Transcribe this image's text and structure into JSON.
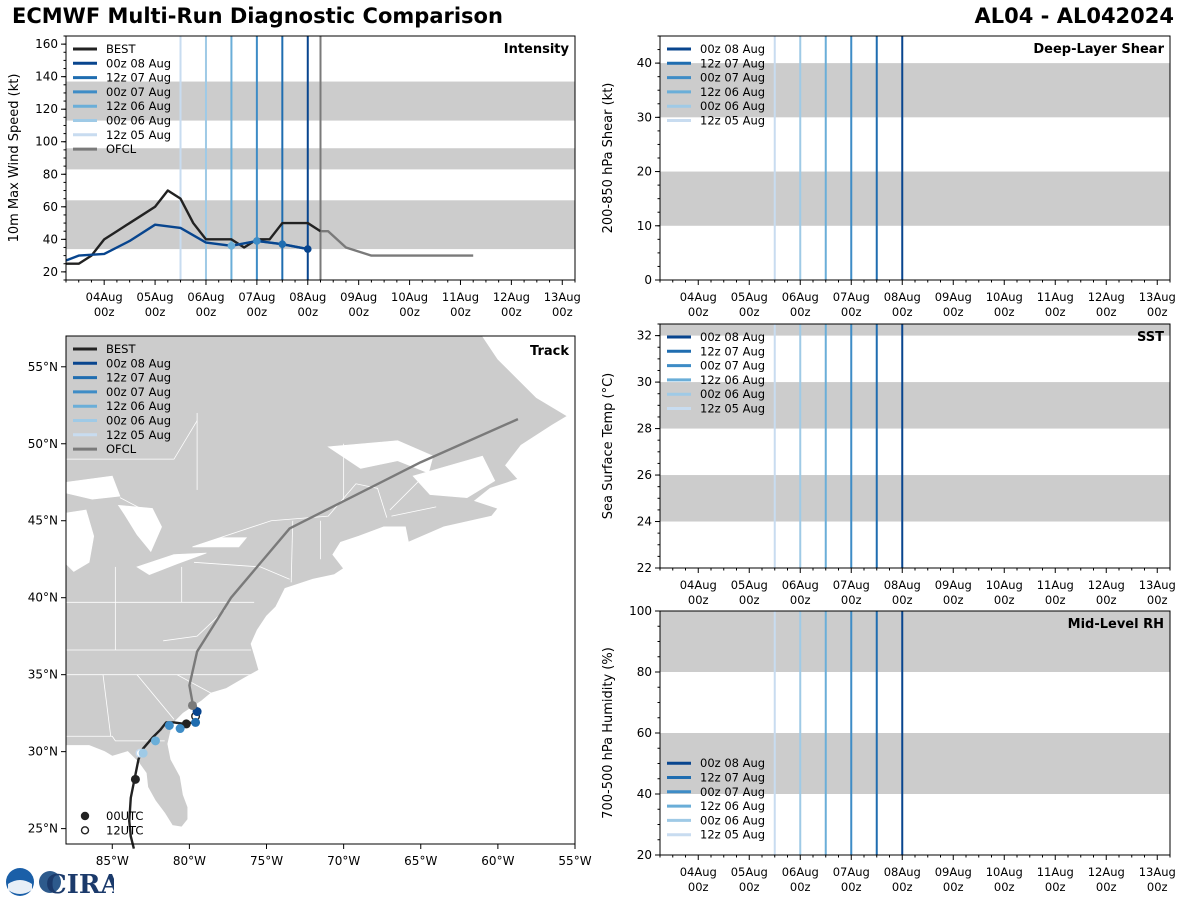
{
  "header": {
    "title_left": "ECMWF Multi-Run Diagnostic Comparison",
    "title_right": "AL04 - AL042024"
  },
  "colors": {
    "BEST": "#222222",
    "OFCL": "#7a7a7a",
    "00z 08 Aug": "#08458e",
    "12z 07 Aug": "#1f6db0",
    "00z 07 Aug": "#3e8cc6",
    "12z 06 Aug": "#6aaed8",
    "00z 06 Aug": "#9fcae6",
    "12z 05 Aug": "#c8dcf0",
    "shade": "#cccccc"
  },
  "logo_text": "CIRA",
  "time_axis": {
    "ticks": [
      {
        "day": 4,
        "label": "04Aug\n00z"
      },
      {
        "day": 5,
        "label": "05Aug\n00z"
      },
      {
        "day": 6,
        "label": "06Aug\n00z"
      },
      {
        "day": 7,
        "label": "07Aug\n00z"
      },
      {
        "day": 8,
        "label": "08Aug\n00z"
      },
      {
        "day": 9,
        "label": "09Aug\n00z"
      },
      {
        "day": 10,
        "label": "10Aug\n00z"
      },
      {
        "day": 11,
        "label": "11Aug\n00z"
      },
      {
        "day": 12,
        "label": "12Aug\n00z"
      },
      {
        "day": 13,
        "label": "13Aug\n00z"
      }
    ],
    "xlim": [
      3.25,
      13.25
    ]
  },
  "chart_data": [
    {
      "id": "intensity",
      "type": "line",
      "title": "Intensity",
      "ylabel": "10m Max Wind Speed (kt)",
      "ylim": [
        15,
        165
      ],
      "yticks": [
        20,
        40,
        60,
        80,
        100,
        120,
        140,
        160
      ],
      "bands": [
        [
          34,
          64
        ],
        [
          83,
          96
        ],
        [
          113,
          137
        ]
      ],
      "init_lines": [
        {
          "name": "12z 05 Aug",
          "x": 5.5
        },
        {
          "name": "00z 06 Aug",
          "x": 6.0
        },
        {
          "name": "12z 06 Aug",
          "x": 6.5
        },
        {
          "name": "00z 07 Aug",
          "x": 7.0
        },
        {
          "name": "12z 07 Aug",
          "x": 7.5
        },
        {
          "name": "00z 08 Aug",
          "x": 8.0
        },
        {
          "name": "OFCL",
          "x": 8.25
        }
      ],
      "legend": [
        "BEST",
        "00z 08 Aug",
        "12z 07 Aug",
        "00z 07 Aug",
        "12z 06 Aug",
        "00z 06 Aug",
        "12z 05 Aug",
        "OFCL"
      ],
      "legend_position": "top-left",
      "series": [
        {
          "name": "BEST",
          "x": [
            3.25,
            3.5,
            3.75,
            4.0,
            4.25,
            4.5,
            4.75,
            5.0,
            5.25,
            5.5,
            5.75,
            6.0,
            6.25,
            6.5,
            6.75,
            7.0,
            7.25,
            7.5,
            7.75,
            8.0,
            8.25
          ],
          "y": [
            25,
            25,
            30,
            40,
            45,
            50,
            55,
            60,
            70,
            65,
            50,
            40,
            40,
            40,
            35,
            40,
            40,
            50,
            50,
            50,
            45
          ]
        },
        {
          "name": "00z 08 Aug",
          "x": [
            8.0
          ],
          "y": [
            34
          ]
        },
        {
          "name": "12z 07 Aug",
          "x": [
            7.5,
            8.0
          ],
          "y": [
            37,
            34
          ]
        },
        {
          "name": "00z 07 Aug",
          "x": [
            7.0,
            7.5
          ],
          "y": [
            39,
            37
          ]
        },
        {
          "name": "12z 06 Aug",
          "x": [
            6.5,
            7.0
          ],
          "y": [
            36,
            39
          ]
        },
        {
          "name": "00z 06 Aug",
          "x": [
            6.0,
            6.5
          ],
          "y": [
            38,
            36
          ]
        },
        {
          "name": "12z 05 Aug",
          "x": [
            5.5,
            6.0
          ],
          "y": [
            47,
            38
          ]
        },
        {
          "name": "00z 08 Aug (run line)",
          "color_of": "00z 08 Aug",
          "x": [
            3.25,
            3.5,
            4.0,
            4.5,
            5.0,
            5.5,
            6.0,
            6.5,
            7.0,
            7.5,
            8.0
          ],
          "y": [
            27,
            30,
            31,
            39,
            49,
            47,
            38,
            36,
            39,
            37,
            34
          ]
        },
        {
          "name": "OFCL",
          "x": [
            8.25,
            8.4,
            8.75,
            9.25,
            11.25
          ],
          "y": [
            45,
            45,
            35,
            30,
            30
          ]
        }
      ],
      "markers": [
        {
          "name": "00z 08 Aug",
          "x": 8.0,
          "y": 34
        },
        {
          "name": "12z 07 Aug",
          "x": 7.5,
          "y": 37
        },
        {
          "name": "00z 07 Aug",
          "x": 7.0,
          "y": 39
        },
        {
          "name": "12z 06 Aug",
          "x": 6.5,
          "y": 36
        }
      ]
    },
    {
      "id": "shear",
      "type": "line",
      "title": "Deep-Layer Shear",
      "ylabel": "200-850 hPa Shear (kt)",
      "ylim": [
        0,
        45
      ],
      "yticks": [
        0,
        10,
        20,
        30,
        40
      ],
      "bands": [
        [
          10,
          20
        ],
        [
          30,
          40
        ]
      ],
      "init_lines": [
        {
          "name": "12z 05 Aug",
          "x": 5.5
        },
        {
          "name": "00z 06 Aug",
          "x": 6.0
        },
        {
          "name": "12z 06 Aug",
          "x": 6.5
        },
        {
          "name": "00z 07 Aug",
          "x": 7.0
        },
        {
          "name": "12z 07 Aug",
          "x": 7.5
        },
        {
          "name": "00z 08 Aug",
          "x": 8.0
        }
      ],
      "legend": [
        "00z 08 Aug",
        "12z 07 Aug",
        "00z 07 Aug",
        "12z 06 Aug",
        "00z 06 Aug",
        "12z 05 Aug"
      ],
      "legend_position": "top-left",
      "series": []
    },
    {
      "id": "sst",
      "type": "line",
      "title": "SST",
      "ylabel": "Sea Surface Temp (°C)",
      "ylim": [
        22,
        32.5
      ],
      "yticks": [
        22,
        24,
        26,
        28,
        30,
        32
      ],
      "bands": [
        [
          24,
          26
        ],
        [
          28,
          30
        ],
        [
          32,
          34
        ]
      ],
      "init_lines": [
        {
          "name": "12z 05 Aug",
          "x": 5.5
        },
        {
          "name": "00z 06 Aug",
          "x": 6.0
        },
        {
          "name": "12z 06 Aug",
          "x": 6.5
        },
        {
          "name": "00z 07 Aug",
          "x": 7.0
        },
        {
          "name": "12z 07 Aug",
          "x": 7.5
        },
        {
          "name": "00z 08 Aug",
          "x": 8.0
        }
      ],
      "legend": [
        "00z 08 Aug",
        "12z 07 Aug",
        "00z 07 Aug",
        "12z 06 Aug",
        "00z 06 Aug",
        "12z 05 Aug"
      ],
      "legend_position": "top-left",
      "series": []
    },
    {
      "id": "rh",
      "type": "line",
      "title": "Mid-Level RH",
      "ylabel": "700-500 hPa Humidity (%)",
      "ylim": [
        20,
        100
      ],
      "yticks": [
        20,
        40,
        60,
        80,
        100
      ],
      "bands": [
        [
          40,
          60
        ],
        [
          80,
          100
        ]
      ],
      "init_lines": [
        {
          "name": "12z 05 Aug",
          "x": 5.5
        },
        {
          "name": "00z 06 Aug",
          "x": 6.0
        },
        {
          "name": "12z 06 Aug",
          "x": 6.5
        },
        {
          "name": "00z 07 Aug",
          "x": 7.0
        },
        {
          "name": "12z 07 Aug",
          "x": 7.5
        },
        {
          "name": "00z 08 Aug",
          "x": 8.0
        }
      ],
      "legend": [
        "00z 08 Aug",
        "12z 07 Aug",
        "00z 07 Aug",
        "12z 06 Aug",
        "00z 06 Aug",
        "12z 05 Aug"
      ],
      "legend_position": "bottom-left",
      "series": []
    },
    {
      "id": "track",
      "type": "scatter",
      "title": "Track",
      "lon_range": [
        -88,
        -55
      ],
      "lat_range": [
        24,
        57
      ],
      "xticks": [
        {
          "v": -85,
          "label": "85°W"
        },
        {
          "v": -80,
          "label": "80°W"
        },
        {
          "v": -75,
          "label": "75°W"
        },
        {
          "v": -70,
          "label": "70°W"
        },
        {
          "v": -65,
          "label": "65°W"
        },
        {
          "v": -60,
          "label": "60°W"
        },
        {
          "v": -55,
          "label": "55°W"
        }
      ],
      "yticks": [
        {
          "v": 25,
          "label": "25°N"
        },
        {
          "v": 30,
          "label": "30°N"
        },
        {
          "v": 35,
          "label": "35°N"
        },
        {
          "v": 40,
          "label": "40°N"
        },
        {
          "v": 45,
          "label": "45°N"
        },
        {
          "v": 50,
          "label": "50°N"
        },
        {
          "v": 55,
          "label": "55°N"
        }
      ],
      "legend": [
        "BEST",
        "00z 08 Aug",
        "12z 07 Aug",
        "00z 07 Aug",
        "12z 06 Aug",
        "00z 06 Aug",
        "12z 05 Aug",
        "OFCL"
      ],
      "legend_position": "top-left",
      "marker_legend": [
        "00UTC",
        "12UTC"
      ],
      "marker_legend_position": "bottom-left",
      "tracks": [
        {
          "name": "BEST",
          "lon": [
            -83.6,
            -83.8,
            -83.9,
            -83.8,
            -83.5,
            -83.3,
            -83.0,
            -82.4,
            -81.9,
            -81.5,
            -81.0,
            -80.3,
            -79.8,
            -79.6,
            -79.5
          ],
          "lat": [
            23.7,
            24.5,
            25.5,
            27.0,
            28.5,
            29.5,
            30.2,
            30.9,
            31.4,
            31.9,
            31.9,
            31.8,
            31.9,
            32.3,
            32.8
          ]
        },
        {
          "name": "OFCL",
          "lon": [
            -79.5,
            -79.8,
            -80.0,
            -79.5,
            -77.3,
            -73.5,
            -65.0,
            -58.7
          ],
          "lat": [
            32.8,
            33.2,
            34.3,
            36.5,
            40.0,
            44.5,
            48.8,
            51.6
          ]
        }
      ],
      "points": [
        {
          "name": "BEST",
          "lon": -83.5,
          "lat": 28.2,
          "utc": "00UTC"
        },
        {
          "name": "BEST",
          "lon": -80.2,
          "lat": 31.8,
          "utc": "00UTC"
        },
        {
          "name": "BEST",
          "lon": -79.6,
          "lat": 32.3,
          "utc": "12UTC"
        },
        {
          "name": "12z 05 Aug",
          "lon": -83.2,
          "lat": 29.9,
          "utc": "12UTC"
        },
        {
          "name": "00z 06 Aug",
          "lon": -83.0,
          "lat": 29.9,
          "utc": "00UTC"
        },
        {
          "name": "12z 06 Aug",
          "lon": -82.2,
          "lat": 30.7,
          "utc": "00UTC"
        },
        {
          "name": "00z 07 Aug",
          "lon": -81.3,
          "lat": 31.7,
          "utc": "00UTC"
        },
        {
          "name": "00z 07 Aug",
          "lon": -80.6,
          "lat": 31.5,
          "utc": "00UTC"
        },
        {
          "name": "12z 07 Aug",
          "lon": -79.6,
          "lat": 31.9,
          "utc": "00UTC"
        },
        {
          "name": "00z 08 Aug",
          "lon": -79.5,
          "lat": 32.6,
          "utc": "00UTC"
        },
        {
          "name": "OFCL",
          "lon": -79.8,
          "lat": 33.0,
          "utc": "00UTC"
        }
      ]
    }
  ]
}
